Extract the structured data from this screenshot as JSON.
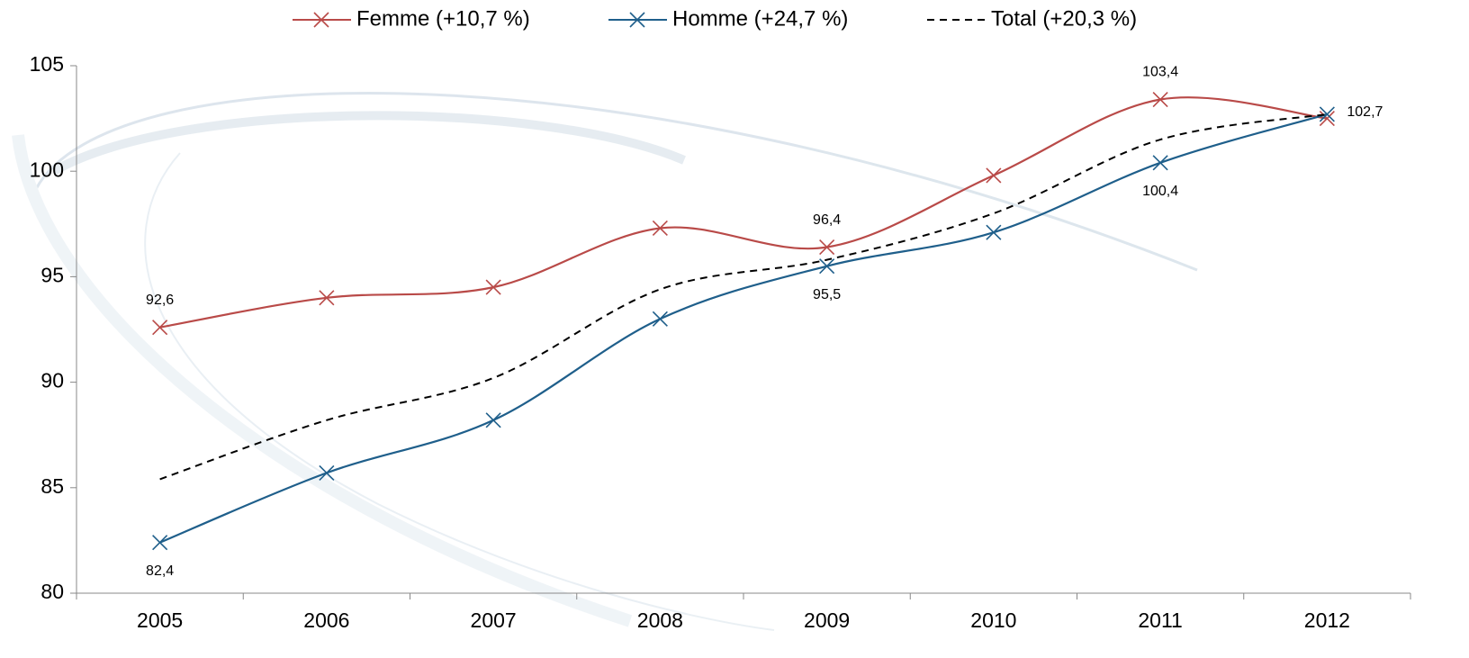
{
  "chart_data": {
    "type": "line",
    "categories": [
      "2005",
      "2006",
      "2007",
      "2008",
      "2009",
      "2010",
      "2011",
      "2012"
    ],
    "series": [
      {
        "name": "Femme (+10,7 %)",
        "color": "#b94a48",
        "marker": "x",
        "values": [
          92.6,
          94.0,
          94.5,
          97.3,
          96.4,
          99.8,
          103.4,
          102.5
        ],
        "value_labels": [
          "92,6",
          null,
          null,
          null,
          "96,4",
          null,
          "103,4",
          null
        ]
      },
      {
        "name": "Homme (+24,7 %)",
        "color": "#1f5f8b",
        "marker": "x",
        "values": [
          82.4,
          85.7,
          88.2,
          93.0,
          95.5,
          97.1,
          100.4,
          102.7
        ],
        "value_labels": [
          "82,4",
          null,
          null,
          null,
          "95,5",
          null,
          "100,4",
          "102,7"
        ]
      },
      {
        "name": "Total (+20,3 %)",
        "color": "#000000",
        "dash": true,
        "values": [
          85.4,
          88.2,
          90.2,
          94.4,
          95.8,
          98.0,
          101.5,
          102.7
        ]
      }
    ],
    "ylim": [
      80,
      105
    ],
    "yticks": [
      80,
      85,
      90,
      95,
      100,
      105
    ],
    "smooth": true,
    "legend": "top"
  }
}
